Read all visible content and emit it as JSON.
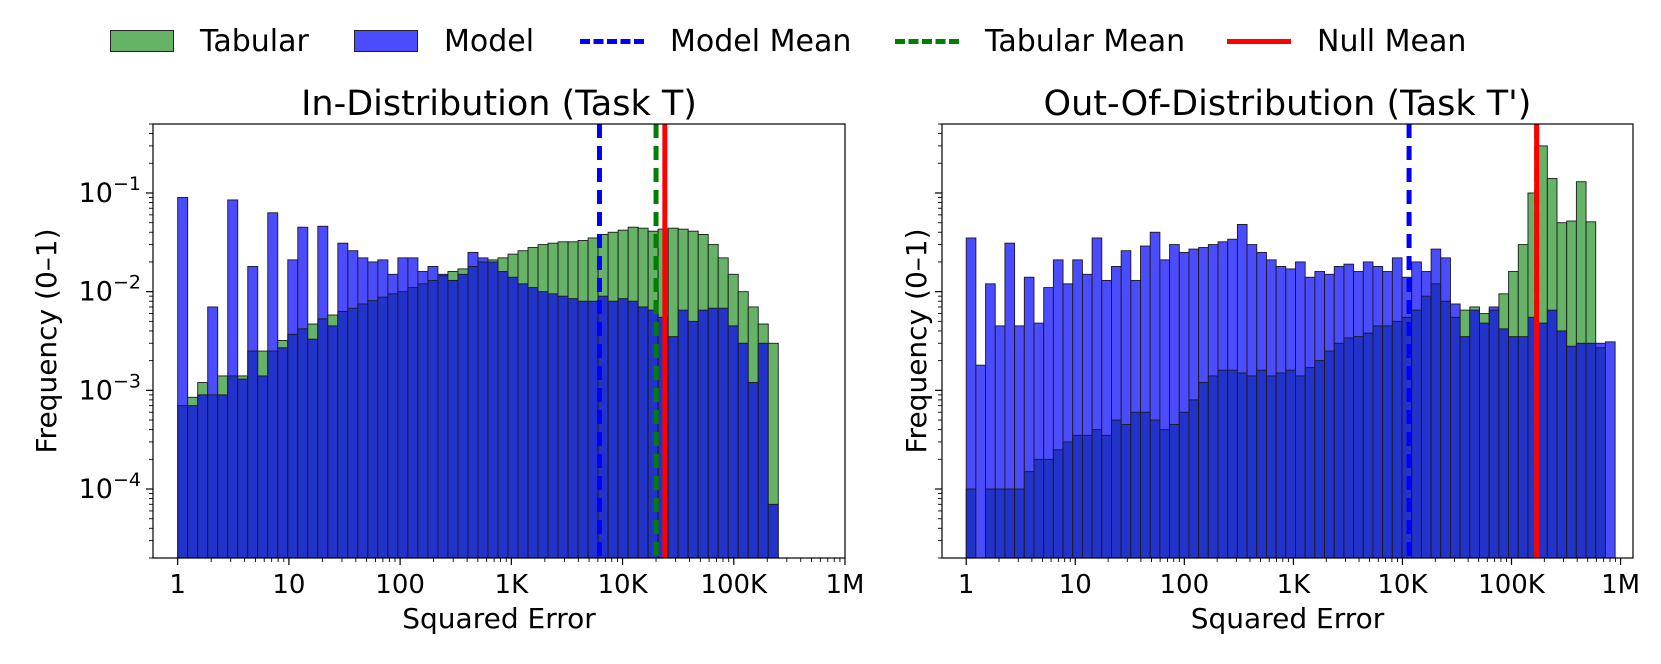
{
  "legend": {
    "tabular": "Tabular",
    "model": "Model",
    "model_mean": "Model Mean",
    "tabular_mean": "Tabular Mean",
    "null_mean": "Null Mean"
  },
  "colors": {
    "tabular": "#66b266",
    "model": "#4c4cff",
    "overlap": "#2233cc",
    "model_mean": "#0000ff",
    "tabular_mean": "#007f00",
    "null_mean": "#ff0000"
  },
  "chart_data": [
    {
      "type": "bar",
      "title": "In-Distribution (Task T)",
      "xlabel": "Squared Error",
      "ylabel": "Frequency (0–1)",
      "xscale": "log",
      "yscale": "log",
      "xlim": [
        0.6,
        1000000
      ],
      "ylim": [
        2e-05,
        0.5
      ],
      "xticks": [
        "1",
        "10",
        "100",
        "1K",
        "10K",
        "100K",
        "1M"
      ],
      "yticks": [
        "10^-4",
        "10^-3",
        "10^-2",
        "10^-1"
      ],
      "bin_edges_log10": [
        0,
        5.4
      ],
      "series": [
        {
          "name": "Tabular",
          "values": [
            0.0007,
            0.00085,
            0.0012,
            0.0009,
            0.0014,
            0.0014,
            0.0014,
            0.0025,
            0.0025,
            0.0025,
            0.0032,
            0.0037,
            0.0042,
            0.0047,
            0.0053,
            0.0058,
            0.0063,
            0.0068,
            0.0075,
            0.0081,
            0.0088,
            0.0095,
            0.01,
            0.011,
            0.012,
            0.013,
            0.0145,
            0.016,
            0.017,
            0.018,
            0.02,
            0.021,
            0.022,
            0.024,
            0.026,
            0.028,
            0.03,
            0.031,
            0.032,
            0.032,
            0.033,
            0.035,
            0.038,
            0.04,
            0.042,
            0.045,
            0.044,
            0.041,
            0.043,
            0.044,
            0.043,
            0.041,
            0.038,
            0.03,
            0.022,
            0.015,
            0.01,
            0.007,
            0.0047,
            0.003
          ]
        },
        {
          "name": "Model",
          "values": [
            0.09,
            0.0007,
            0.0009,
            0.007,
            0.0009,
            0.085,
            0.0013,
            0.018,
            0.0014,
            0.063,
            0.0027,
            0.021,
            0.045,
            0.0033,
            0.046,
            0.0045,
            0.031,
            0.026,
            0.022,
            0.02,
            0.021,
            0.015,
            0.022,
            0.022,
            0.016,
            0.018,
            0.015,
            0.013,
            0.015,
            0.025,
            0.022,
            0.02,
            0.016,
            0.014,
            0.012,
            0.011,
            0.01,
            0.0095,
            0.009,
            0.0085,
            0.008,
            0.008,
            0.009,
            0.008,
            0.0085,
            0.008,
            0.007,
            0.0065,
            0.0055,
            0.0035,
            0.0065,
            0.005,
            0.0065,
            0.0068,
            0.0068,
            0.0045,
            0.003,
            0.0012,
            0.003,
            7e-05
          ]
        }
      ],
      "lines": [
        {
          "name": "Model Mean",
          "x": 6200
        },
        {
          "name": "Tabular Mean",
          "x": 20000
        },
        {
          "name": "Null Mean",
          "x": 24000
        }
      ]
    },
    {
      "type": "bar",
      "title": "Out-Of-Distribution (Task T')",
      "xlabel": "Squared Error",
      "ylabel": "Frequency (0–1)",
      "xscale": "log",
      "yscale": "log",
      "xlim": [
        0.6,
        1300000
      ],
      "ylim": [
        2e-05,
        0.5
      ],
      "xticks": [
        "1",
        "10",
        "100",
        "1K",
        "10K",
        "100K",
        "1M"
      ],
      "bin_edges_log10": [
        0,
        5.95
      ],
      "series": [
        {
          "name": "Tabular",
          "values": [
            0.0001,
            2e-05,
            0.0001,
            0.0001,
            0.0001,
            0.0001,
            0.00015,
            0.0002,
            0.0002,
            0.00025,
            0.0003,
            0.00035,
            0.00035,
            0.0004,
            0.00035,
            0.0005,
            0.00045,
            0.0006,
            0.0006,
            0.0005,
            0.0004,
            0.00045,
            0.0006,
            0.0008,
            0.0012,
            0.0014,
            0.0016,
            0.0016,
            0.0015,
            0.0014,
            0.0016,
            0.0014,
            0.0015,
            0.0016,
            0.0014,
            0.0017,
            0.002,
            0.0025,
            0.003,
            0.0034,
            0.0035,
            0.0038,
            0.0045,
            0.0045,
            0.005,
            0.0055,
            0.0065,
            0.009,
            0.012,
            0.008,
            0.0055,
            0.0065,
            0.007,
            0.006,
            0.0065,
            0.0095,
            0.016,
            0.03,
            0.1,
            0.3,
            0.14,
            0.05,
            0.052,
            0.13,
            0.051,
            0.0027,
            2e-05
          ]
        },
        {
          "name": "Model",
          "values": [
            0.035,
            0.0018,
            0.012,
            0.0045,
            0.031,
            0.0045,
            0.014,
            0.0048,
            0.011,
            0.021,
            0.012,
            0.021,
            0.015,
            0.035,
            0.013,
            0.018,
            0.026,
            0.013,
            0.029,
            0.04,
            0.021,
            0.03,
            0.025,
            0.027,
            0.028,
            0.03,
            0.032,
            0.034,
            0.048,
            0.03,
            0.025,
            0.021,
            0.018,
            0.017,
            0.02,
            0.014,
            0.016,
            0.015,
            0.018,
            0.019,
            0.016,
            0.02,
            0.018,
            0.016,
            0.022,
            0.014,
            0.02,
            0.016,
            0.027,
            0.022,
            0.0075,
            0.0035,
            0.0065,
            0.0048,
            0.007,
            0.0042,
            0.0035,
            0.0035,
            0.0055,
            0.0048,
            0.0065,
            0.004,
            0.0028,
            0.003,
            0.003,
            0.003,
            0.0031
          ]
        }
      ],
      "lines": [
        {
          "name": "Model Mean",
          "x": 11500
        },
        {
          "name": "Tabular Mean",
          "x": 170000
        },
        {
          "name": "Null Mean",
          "x": 170000
        }
      ]
    }
  ]
}
